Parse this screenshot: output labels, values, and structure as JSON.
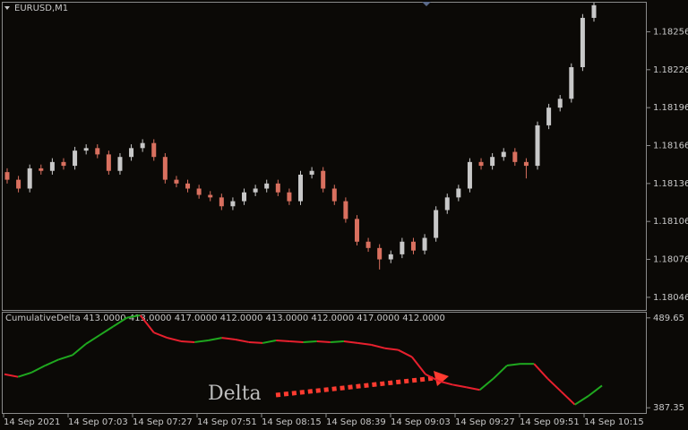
{
  "chart_data": [
    {
      "type": "candlestick",
      "title": "EURUSD,M1",
      "up_color": "#c8c8c8",
      "down_color": "#d9705f",
      "candles": [
        [
          1.18145,
          1.18148,
          1.18136,
          1.18139
        ],
        [
          1.18139,
          1.18142,
          1.18129,
          1.18132
        ],
        [
          1.18132,
          1.18151,
          1.18129,
          1.18148
        ],
        [
          1.18148,
          1.18151,
          1.18143,
          1.18146
        ],
        [
          1.18146,
          1.18156,
          1.18143,
          1.18153
        ],
        [
          1.18153,
          1.18156,
          1.18147,
          1.1815
        ],
        [
          1.1815,
          1.18165,
          1.18147,
          1.18162
        ],
        [
          1.18162,
          1.18167,
          1.18159,
          1.18164
        ],
        [
          1.18164,
          1.18167,
          1.18156,
          1.18159
        ],
        [
          1.18159,
          1.18162,
          1.18143,
          1.18146
        ],
        [
          1.18146,
          1.1816,
          1.18143,
          1.18157
        ],
        [
          1.18157,
          1.18167,
          1.18154,
          1.18164
        ],
        [
          1.18164,
          1.18171,
          1.18161,
          1.18168
        ],
        [
          1.18168,
          1.18171,
          1.18154,
          1.18157
        ],
        [
          1.18157,
          1.1816,
          1.18136,
          1.18139
        ],
        [
          1.18139,
          1.18142,
          1.18133,
          1.18136
        ],
        [
          1.18136,
          1.18139,
          1.18129,
          1.18132
        ],
        [
          1.18132,
          1.18135,
          1.18124,
          1.18127
        ],
        [
          1.18127,
          1.1813,
          1.18122,
          1.18125
        ],
        [
          1.18125,
          1.18128,
          1.18115,
          1.18118
        ],
        [
          1.18118,
          1.18125,
          1.18115,
          1.18122
        ],
        [
          1.18122,
          1.18132,
          1.18119,
          1.18129
        ],
        [
          1.18129,
          1.18135,
          1.18126,
          1.18132
        ],
        [
          1.18132,
          1.18139,
          1.18129,
          1.18136
        ],
        [
          1.18136,
          1.18139,
          1.18126,
          1.18129
        ],
        [
          1.18129,
          1.18132,
          1.18119,
          1.18122
        ],
        [
          1.18122,
          1.18146,
          1.18119,
          1.18143
        ],
        [
          1.18143,
          1.18149,
          1.1814,
          1.18146
        ],
        [
          1.18146,
          1.18149,
          1.18129,
          1.18132
        ],
        [
          1.18132,
          1.18135,
          1.18119,
          1.18122
        ],
        [
          1.18122,
          1.18125,
          1.18105,
          1.18108
        ],
        [
          1.18108,
          1.18111,
          1.18087,
          1.1809
        ],
        [
          1.1809,
          1.18093,
          1.18082,
          1.18085
        ],
        [
          1.18085,
          1.18088,
          1.18068,
          1.18076
        ],
        [
          1.18076,
          1.18083,
          1.18073,
          1.1808
        ],
        [
          1.1808,
          1.18093,
          1.18077,
          1.1809
        ],
        [
          1.1809,
          1.18093,
          1.1808,
          1.18083
        ],
        [
          1.18083,
          1.18096,
          1.1808,
          1.18093
        ],
        [
          1.18093,
          1.18118,
          1.1809,
          1.18115
        ],
        [
          1.18115,
          1.18128,
          1.18112,
          1.18125
        ],
        [
          1.18125,
          1.18135,
          1.18122,
          1.18132
        ],
        [
          1.18132,
          1.18156,
          1.18129,
          1.18153
        ],
        [
          1.18153,
          1.18156,
          1.18147,
          1.1815
        ],
        [
          1.1815,
          1.1816,
          1.18147,
          1.18157
        ],
        [
          1.18157,
          1.18164,
          1.18154,
          1.18161
        ],
        [
          1.18161,
          1.18164,
          1.1815,
          1.18153
        ],
        [
          1.18153,
          1.18156,
          1.1814,
          1.1815
        ],
        [
          1.1815,
          1.18185,
          1.18147,
          1.18182
        ],
        [
          1.18182,
          1.18199,
          1.18179,
          1.18196
        ],
        [
          1.18196,
          1.18206,
          1.18193,
          1.18203
        ],
        [
          1.18203,
          1.18231,
          1.182,
          1.18228
        ],
        [
          1.18228,
          1.1827,
          1.18225,
          1.18267
        ],
        [
          1.18267,
          1.18279,
          1.18264,
          1.18277
        ]
      ],
      "ylim": [
        1.18036,
        1.18279
      ],
      "yticks": [
        1.18256,
        1.18226,
        1.18196,
        1.18166,
        1.18136,
        1.18106,
        1.18076,
        1.18046
      ]
    },
    {
      "type": "line",
      "title": "CumulativeDelta 413.0000 413.0000 417.0000 412.0000 413.0000 412.0000 417.0000 412.0000",
      "up_color": "#1fa81f",
      "down_color": "#e8202e",
      "values": [
        425.5,
        422.5,
        427.5,
        435.4,
        442.3,
        447.2,
        460.0,
        469.9,
        479.8,
        489.7,
        492.6,
        472.9,
        466.9,
        463.0,
        462.0,
        464.0,
        466.9,
        465.0,
        462.0,
        461.0,
        464.0,
        463.0,
        462.0,
        463.0,
        462.0,
        463.0,
        461.0,
        459.0,
        455.1,
        453.1,
        445.2,
        425.5,
        417.6,
        413.6,
        410.7,
        407.7,
        420.5,
        435.4,
        437.3,
        437.3,
        420.5,
        405.7,
        390.9,
        400.8,
        412.6
      ],
      "ylim": [
        381.43,
        495.57
      ],
      "yticks": [
        489.65,
        387.35
      ],
      "annotation": "Delta",
      "x_labels": [
        "14 Sep 2021",
        "14 Sep 07:03",
        "14 Sep 07:27",
        "14 Sep 07:51",
        "14 Sep 08:15",
        "14 Sep 08:39",
        "14 Sep 09:03",
        "14 Sep 09:27",
        "14 Sep 09:51",
        "14 Sep 10:15"
      ]
    }
  ]
}
